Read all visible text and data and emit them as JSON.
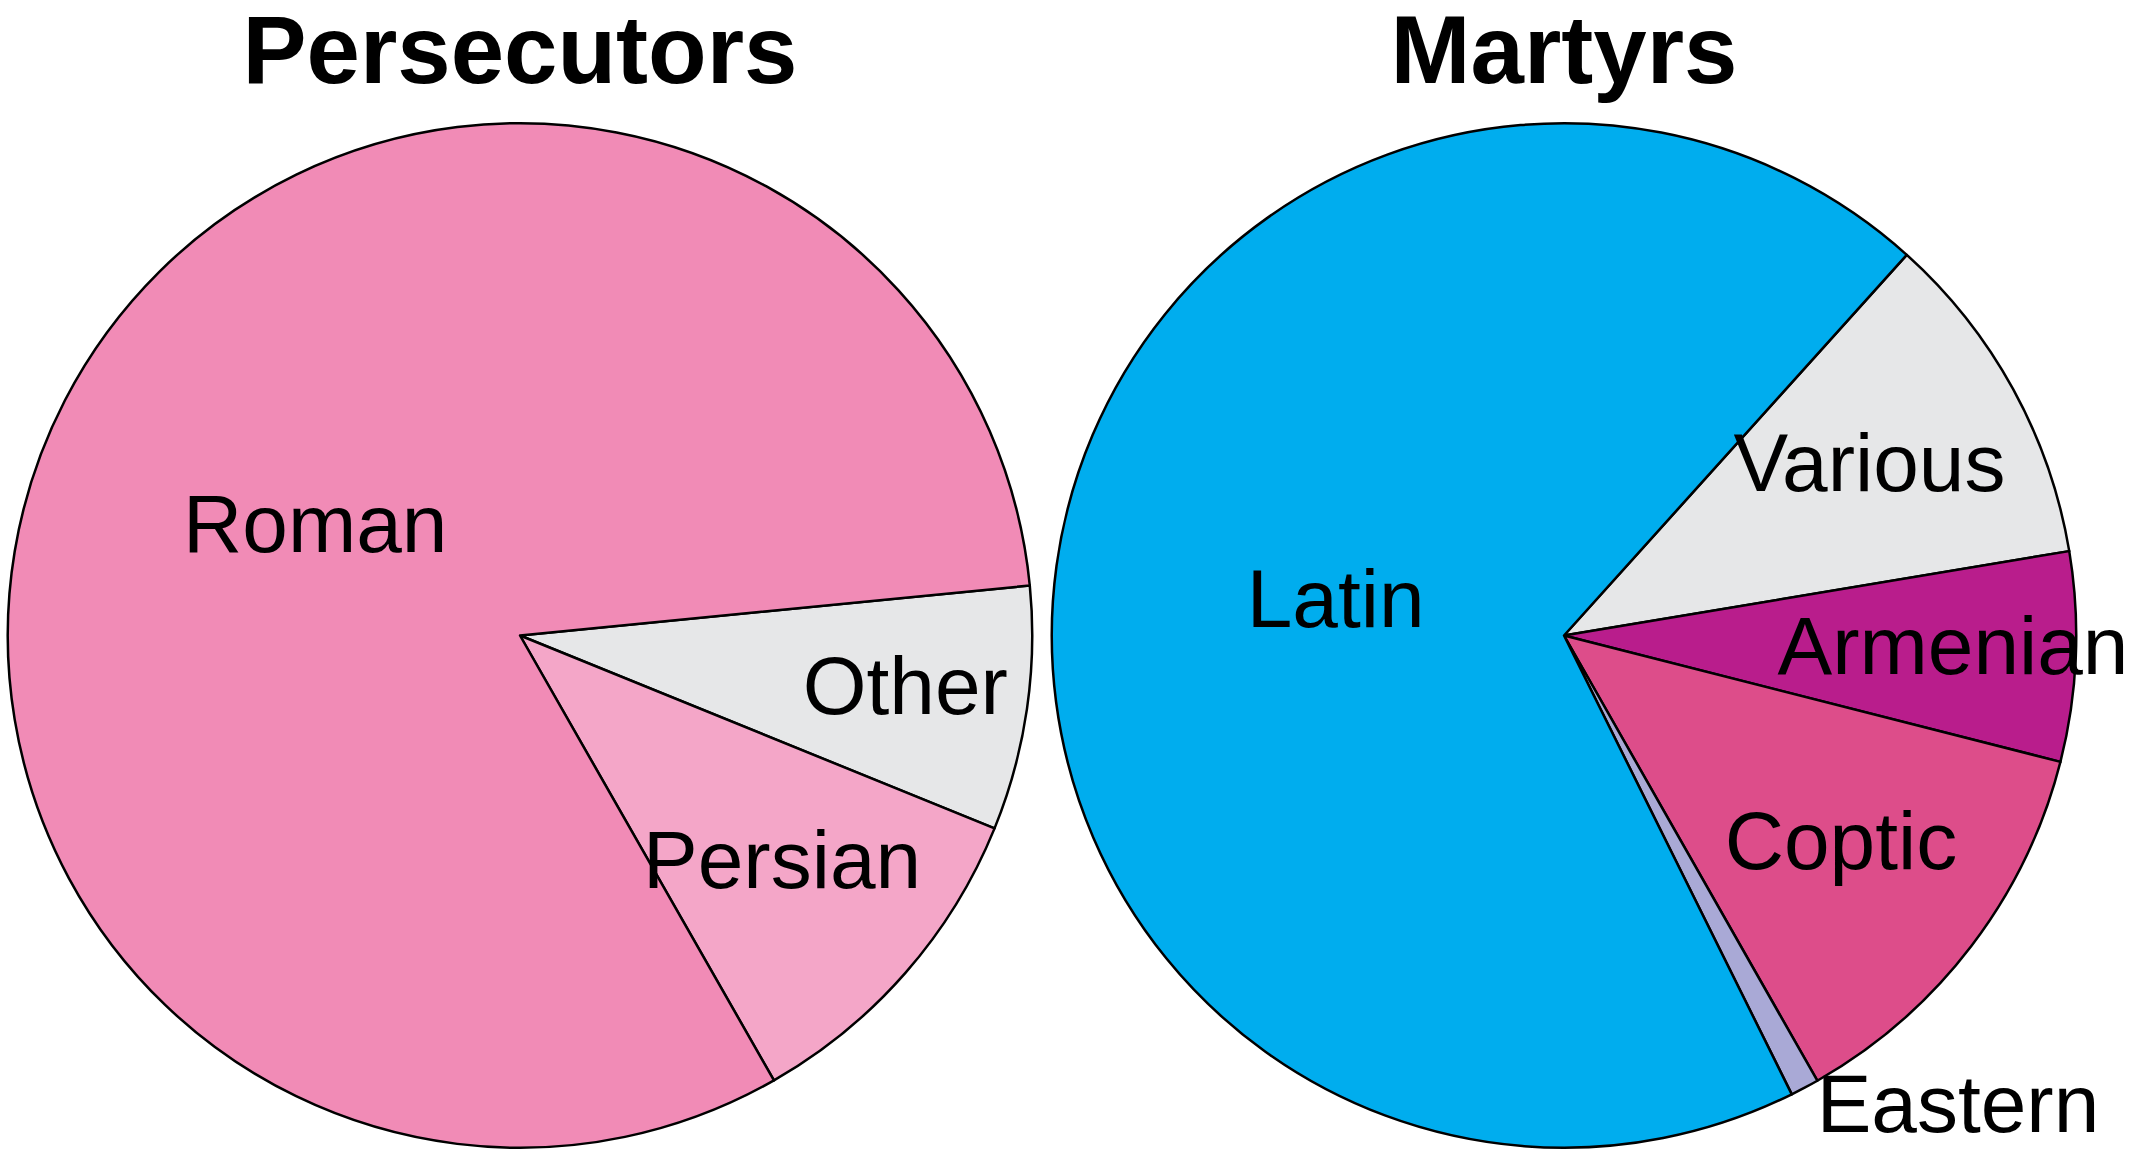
{
  "chart_data": [
    {
      "type": "pie",
      "title": "Persecutors",
      "categories": [
        "Other",
        "Persian",
        "Roman"
      ],
      "values": [
        7.7,
        10.6,
        81.7
      ],
      "colors": [
        "#e6e7e8",
        "#f4a6c8",
        "#f18bb6"
      ],
      "legend": false
    },
    {
      "type": "pie",
      "title": "Martyrs",
      "categories": [
        "Various",
        "Armenian",
        "Coptic",
        "Eastern",
        "Latin"
      ],
      "values": [
        10.7,
        6.6,
        12.8,
        0.9,
        69.0
      ],
      "colors": [
        "#e6e7e8",
        "#b91d8c",
        "#dd4d8a",
        "#a9a9d6",
        "#00adee"
      ],
      "legend": false
    }
  ]
}
